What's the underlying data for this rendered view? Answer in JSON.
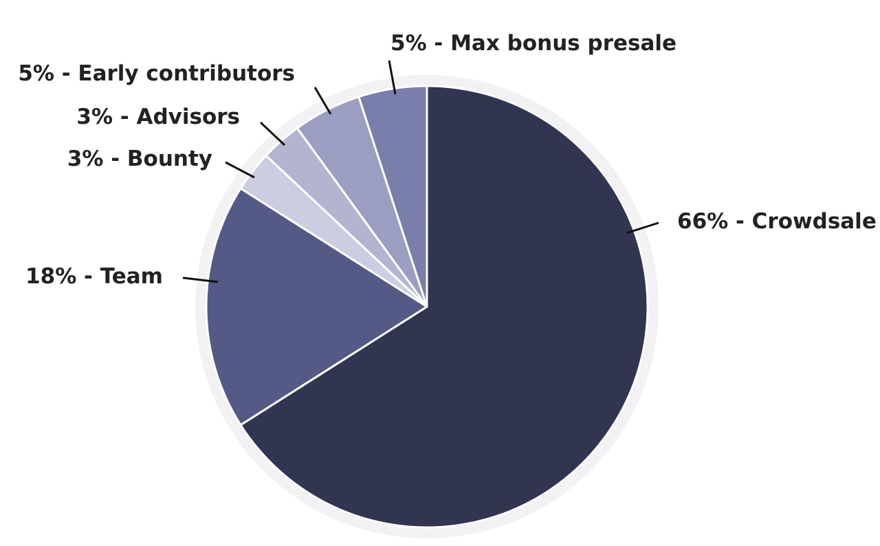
{
  "chart_data": {
    "type": "pie",
    "slices": [
      {
        "label": "66% - Crowdsale",
        "value": 66,
        "color": "#323551"
      },
      {
        "label": "18% - Team",
        "value": 18,
        "color": "#555985"
      },
      {
        "label": "3% - Bounty",
        "value": 3,
        "color": "#cccde0"
      },
      {
        "label": "3% - Advisors",
        "value": 3,
        "color": "#b3b5d0"
      },
      {
        "label": "5% - Early contributors",
        "value": 5,
        "color": "#9c9ec1"
      },
      {
        "label": "5% - Max bonus presale",
        "value": 5,
        "color": "#7a7eaa"
      }
    ],
    "start_angle_deg": 0,
    "direction": "clockwise",
    "label_text_color": "#222222",
    "leader_line_color": "#111111",
    "slice_border_color": "#ffffff",
    "halo_color": "#f2f2f4"
  }
}
